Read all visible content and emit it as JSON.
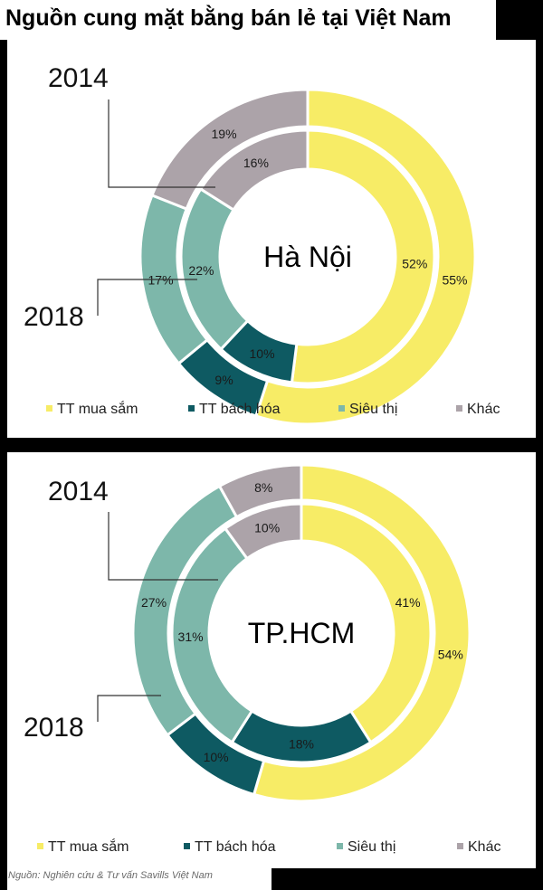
{
  "title": "Nguồn cung mặt bằng bán lẻ tại Việt Nam",
  "source": "Nguồn: Nghiên cứu & Tư vấn Savills Việt Nam",
  "colors": {
    "TT mua sắm": "#f7ec66",
    "TT bách hóa": "#0e5a62",
    "Siêu thị": "#7db7aa",
    "Khác": "#aca3a9"
  },
  "chart_data": [
    {
      "type": "pie",
      "title": "Hà Nội",
      "categories": [
        "TT mua sắm",
        "TT bách hóa",
        "Siêu thị",
        "Khác"
      ],
      "series": [
        {
          "name": "2018",
          "ring": "outer",
          "values": [
            55,
            9,
            17,
            19
          ]
        },
        {
          "name": "2014",
          "ring": "inner",
          "values": [
            52,
            10,
            22,
            16
          ]
        }
      ],
      "legend": [
        "TT mua sắm",
        "TT bách hóa",
        "Siêu thị",
        "Khác"
      ],
      "legend_position": "bottom"
    },
    {
      "type": "pie",
      "title": "TP.HCM",
      "categories": [
        "TT mua sắm",
        "TT bách hóa",
        "Siêu thị",
        "Khác"
      ],
      "series": [
        {
          "name": "2018",
          "ring": "outer",
          "values": [
            54,
            10,
            27,
            8
          ]
        },
        {
          "name": "2014",
          "ring": "inner",
          "values": [
            41,
            18,
            31,
            10
          ]
        }
      ],
      "legend": [
        "TT mua sắm",
        "TT bách hóa",
        "Siêu thị",
        "Khác"
      ],
      "legend_position": "bottom"
    }
  ]
}
